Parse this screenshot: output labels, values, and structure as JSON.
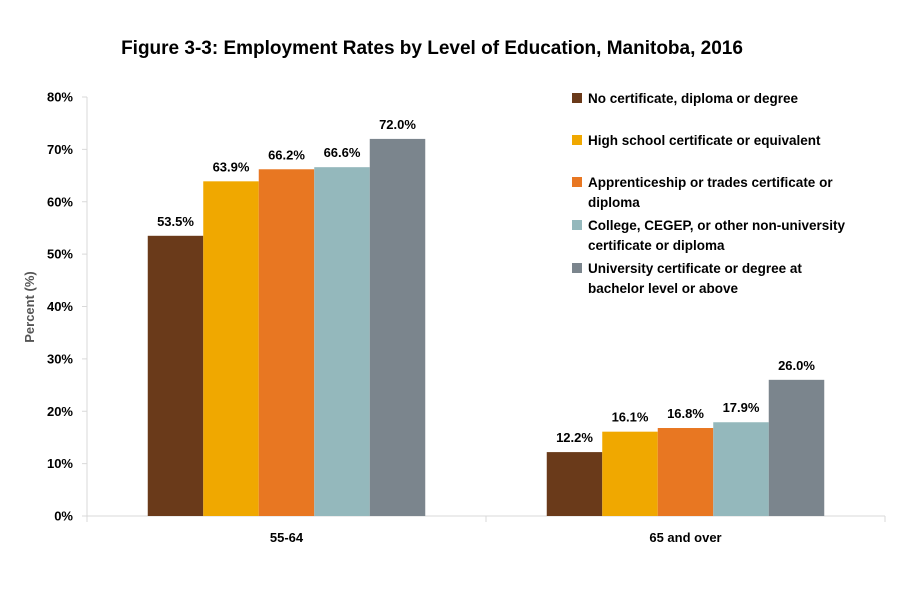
{
  "chart_data": {
    "type": "bar",
    "title": "Figure 3-3: Employment Rates by Level of Education, Manitoba, 2016",
    "xlabel": "",
    "ylabel": "Percent (%)",
    "ylim": [
      0,
      80
    ],
    "yticks": [
      "0%",
      "10%",
      "20%",
      "30%",
      "40%",
      "50%",
      "60%",
      "70%",
      "80%"
    ],
    "categories": [
      "55-64",
      "65 and over"
    ],
    "legend_position": "top-right",
    "grid": false,
    "series": [
      {
        "name": "No certificate, diploma or degree",
        "legend_lines": [
          "No certificate, diploma or degree"
        ],
        "color": "#6a3a1a",
        "values": [
          53.5,
          12.2
        ],
        "labels": [
          "53.5%",
          "12.2%"
        ]
      },
      {
        "name": "High school certificate or equivalent",
        "legend_lines": [
          "High school certificate or equivalent"
        ],
        "color": "#f0a800",
        "values": [
          63.9,
          16.1
        ],
        "labels": [
          "63.9%",
          "16.1%"
        ]
      },
      {
        "name": "Apprenticeship or trades certificate or diploma",
        "legend_lines": [
          "Apprenticeship or trades certificate or",
          "diploma"
        ],
        "color": "#e87722",
        "values": [
          66.2,
          16.8
        ],
        "labels": [
          "66.2%",
          "16.8%"
        ]
      },
      {
        "name": "College, CEGEP, or other non-university certificate or diploma",
        "legend_lines": [
          "College, CEGEP, or other non-university",
          "certificate or diploma"
        ],
        "color": "#94b8bc",
        "values": [
          66.6,
          17.9
        ],
        "labels": [
          "66.6%",
          "17.9%"
        ]
      },
      {
        "name": "University certificate or degree at bachelor level or above",
        "legend_lines": [
          "University certificate or degree at",
          "bachelor level or above"
        ],
        "color": "#7b858d",
        "values": [
          72.0,
          26.0
        ],
        "labels": [
          "72.0%",
          "26.0%"
        ]
      }
    ]
  }
}
